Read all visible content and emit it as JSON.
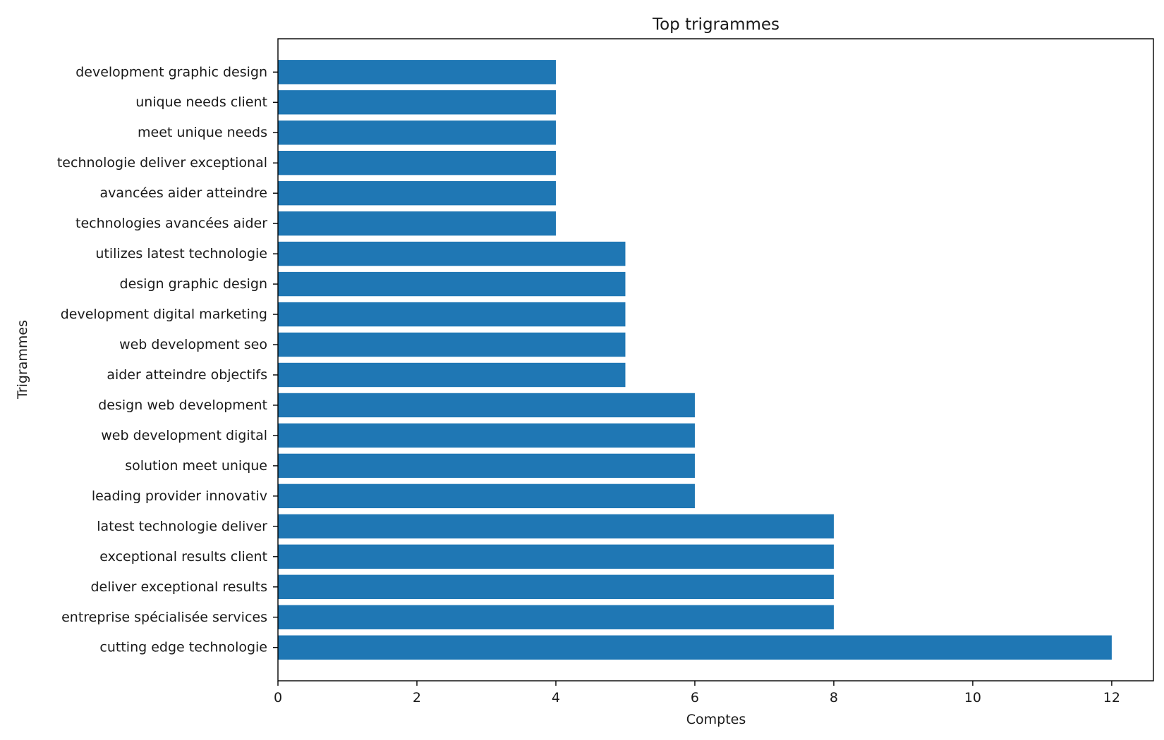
{
  "chart_data": {
    "type": "bar",
    "orientation": "horizontal",
    "title": "Top trigrammes",
    "xlabel": "Comptes",
    "ylabel": "Trigrammes",
    "categories": [
      "cutting edge technologie",
      "entreprise spécialisée services",
      "deliver exceptional results",
      "exceptional results client",
      "latest technologie deliver",
      "leading provider innovativ",
      "solution meet unique",
      "web development digital",
      "design web development",
      "aider atteindre objectifs",
      "web development seo",
      "development digital marketing",
      "design graphic design",
      "utilizes latest technologie",
      "technologies avancées aider",
      "avancées aider atteindre",
      "technologie deliver exceptional",
      "meet unique needs",
      "unique needs client",
      "development graphic design"
    ],
    "values": [
      12,
      8,
      8,
      8,
      8,
      6,
      6,
      6,
      6,
      5,
      5,
      5,
      5,
      5,
      4,
      4,
      4,
      4,
      4,
      4
    ],
    "xlim": [
      0,
      12.6
    ],
    "xticks": [
      0,
      2,
      4,
      6,
      8,
      10,
      12
    ],
    "grid": false,
    "bar_color": "#1f77b4"
  }
}
